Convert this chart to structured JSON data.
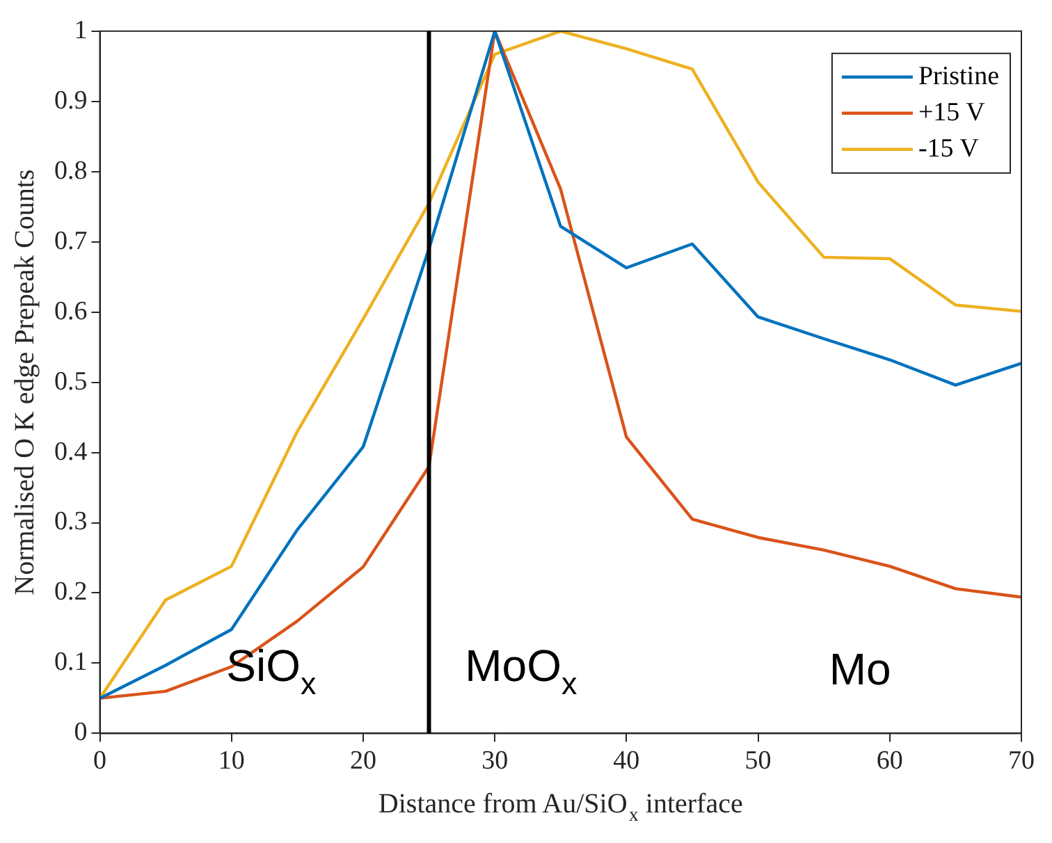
{
  "chart_data": {
    "type": "line",
    "xlabel": "Distance from Au/SiO$_{x}$ interface",
    "ylabel": "Normalised O K edge Prepeak Counts",
    "x": [
      0,
      5,
      10,
      15,
      20,
      25,
      30,
      35,
      40,
      45,
      50,
      55,
      60,
      65,
      70
    ],
    "series": [
      {
        "name": "Pristine",
        "color": "#0072bd",
        "values": [
          0.05,
          0.097,
          0.148,
          0.29,
          0.408,
          0.69,
          1.0,
          0.722,
          0.663,
          0.697,
          0.593,
          0.562,
          0.532,
          0.496,
          0.527
        ]
      },
      {
        "name": "+15 V",
        "color": "#d95319",
        "values": [
          0.05,
          0.06,
          0.095,
          0.16,
          0.237,
          0.38,
          1.0,
          0.775,
          0.422,
          0.305,
          0.279,
          0.261,
          0.238,
          0.206,
          0.194
        ]
      },
      {
        "name": "-15 V",
        "color": "#edb120",
        "values": [
          0.05,
          0.19,
          0.238,
          0.43,
          0.59,
          0.755,
          0.967,
          1.0,
          0.975,
          0.946,
          0.785,
          0.678,
          0.676,
          0.61,
          0.601
        ]
      }
    ],
    "xlim": [
      0,
      70
    ],
    "xticks": [
      0,
      10,
      20,
      30,
      40,
      50,
      60,
      70
    ],
    "ylim": [
      0,
      1
    ],
    "yticks": [
      0,
      0.1,
      0.2,
      0.3,
      0.4,
      0.5,
      0.6,
      0.7,
      0.8,
      0.9,
      1
    ],
    "ref_lines": [
      {
        "axis": "x",
        "value": 25,
        "color": "#000000"
      }
    ],
    "annotations": [
      "SiO$_{x}$",
      "MoO$_{x}$",
      "Mo"
    ],
    "legend": "top right",
    "grid": false,
    "marker": "none",
    "line_style": "solid"
  }
}
